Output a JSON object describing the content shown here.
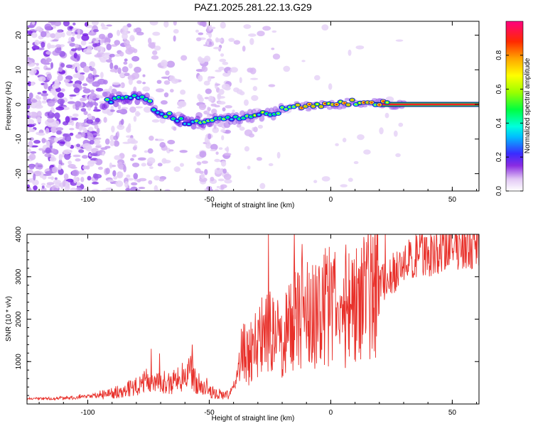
{
  "title": "PAZ1.2025.281.22.13.G29",
  "chart_data": [
    {
      "type": "heatmap",
      "xlabel": "Height of straight line (km)",
      "ylabel": "Frequency (Hz)",
      "xlim": [
        -125,
        61
      ],
      "ylim": [
        -25,
        24
      ],
      "xticks": [
        -100,
        -50,
        0,
        50
      ],
      "yticks": [
        20,
        10,
        0,
        -10,
        -20
      ],
      "ridge": {
        "x": [
          -92,
          -85,
          -80,
          -75,
          -72,
          -68,
          -62,
          -56,
          -50,
          -45,
          -40,
          -35,
          -30,
          -25,
          -20,
          -18,
          -10,
          0,
          5,
          10,
          15,
          20,
          30,
          61
        ],
        "frequency": [
          1,
          1.5,
          2,
          1.5,
          -2,
          -3,
          -4.5,
          -5.5,
          -5,
          -4,
          -4,
          -3.5,
          -3,
          -3,
          -1.5,
          -0.5,
          -0.5,
          -0.3,
          0.2,
          0.8,
          0.5,
          0.2,
          0,
          0
        ]
      },
      "colorbar": {
        "label": "Normalized spectral amplitude",
        "ticks": [
          0.0,
          0.2,
          0.4,
          0.6,
          0.8
        ],
        "range": [
          0,
          1
        ]
      }
    },
    {
      "type": "line",
      "xlabel": "Height of straight line (km)",
      "ylabel": "SNR (10 * v/v)",
      "xlim": [
        -125,
        61
      ],
      "ylim": [
        0,
        4000
      ],
      "xticks": [
        -100,
        -50,
        0,
        50
      ],
      "yticks": [
        1000,
        2000,
        3000,
        4000
      ],
      "series": [
        {
          "name": "SNR",
          "color": "#e8302a",
          "x": [
            -125,
            -115,
            -105,
            -98,
            -90,
            -82,
            -78,
            -74,
            -70,
            -66,
            -62,
            -58,
            -55,
            -50,
            -45,
            -42,
            -40,
            -38,
            -36,
            -34,
            -30,
            -25,
            -20,
            -15,
            -10,
            -5,
            0,
            5,
            10,
            15,
            20,
            25,
            30,
            35,
            40,
            50,
            61
          ],
          "y": [
            120,
            130,
            150,
            180,
            260,
            380,
            480,
            600,
            550,
            480,
            600,
            750,
            500,
            300,
            220,
            200,
            400,
            800,
            1300,
            1100,
            1500,
            1700,
            1500,
            2000,
            2100,
            2200,
            2300,
            2400,
            2550,
            2700,
            2800,
            3050,
            3300,
            3450,
            3550,
            3700,
            3800
          ]
        }
      ],
      "spikes": [
        {
          "x": -57,
          "y": 1400
        },
        {
          "x": -15,
          "y": 4000
        },
        {
          "x": 6,
          "y": 850
        },
        {
          "x": -25,
          "y": 2650
        },
        {
          "x": 18,
          "y": 3100
        }
      ]
    }
  ]
}
